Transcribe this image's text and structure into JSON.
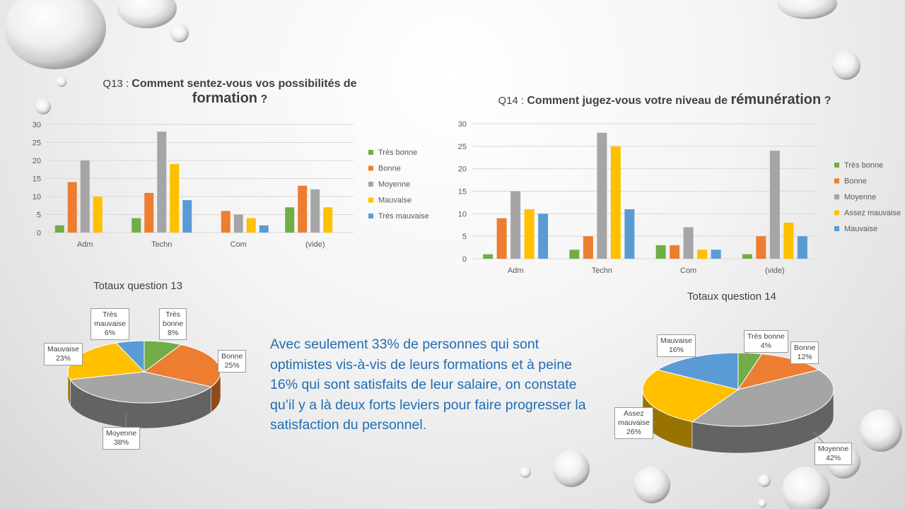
{
  "chart_data": [
    {
      "type": "bar",
      "title": "Q13 : Comment sentez-vous vos possibilités de formation ?",
      "categories": [
        "Adm",
        "Techn",
        "Com",
        "(vide)"
      ],
      "ylim": [
        0,
        30
      ],
      "yticks": [
        0,
        5,
        10,
        15,
        20,
        25,
        30
      ],
      "grid": true,
      "legend_position": "right",
      "series": [
        {
          "name": "Très bonne",
          "color": "#70ad47",
          "values": [
            2,
            4,
            0,
            7
          ]
        },
        {
          "name": "Bonne",
          "color": "#ed7d31",
          "values": [
            14,
            11,
            6,
            13
          ]
        },
        {
          "name": "Moyenne",
          "color": "#a5a5a5",
          "values": [
            20,
            28,
            5,
            12
          ]
        },
        {
          "name": "Mauvaise",
          "color": "#ffc000",
          "values": [
            10,
            19,
            4,
            7
          ]
        },
        {
          "name": "Très mauvaise",
          "color": "#5b9bd5",
          "values": [
            0,
            9,
            2,
            0
          ]
        }
      ]
    },
    {
      "type": "bar",
      "title": "Q14 : Comment jugez-vous votre niveau de rémunération ?",
      "categories": [
        "Adm",
        "Techn",
        "Com",
        "(vide)"
      ],
      "ylim": [
        0,
        30
      ],
      "yticks": [
        0,
        5,
        10,
        15,
        20,
        25,
        30
      ],
      "grid": true,
      "legend_position": "right",
      "series": [
        {
          "name": "Très bonne",
          "color": "#70ad47",
          "values": [
            1,
            2,
            3,
            1
          ]
        },
        {
          "name": "Bonne",
          "color": "#ed7d31",
          "values": [
            9,
            5,
            3,
            5
          ]
        },
        {
          "name": "Moyenne",
          "color": "#a5a5a5",
          "values": [
            15,
            28,
            7,
            24
          ]
        },
        {
          "name": "Assez mauvaise",
          "color": "#ffc000",
          "values": [
            11,
            25,
            2,
            8
          ]
        },
        {
          "name": "Mauvaise",
          "color": "#5b9bd5",
          "values": [
            10,
            11,
            2,
            5
          ]
        }
      ]
    },
    {
      "type": "pie",
      "title": "Totaux question 13",
      "slices": [
        {
          "label": "Très bonne",
          "label_lines": [
            "Très",
            "bonne",
            "8%"
          ],
          "value": 8,
          "color": "#70ad47"
        },
        {
          "label": "Bonne",
          "label_lines": [
            "Bonne",
            "25%"
          ],
          "value": 25,
          "color": "#ed7d31"
        },
        {
          "label": "Moyenne",
          "label_lines": [
            "Moyenne",
            "38%"
          ],
          "value": 38,
          "color": "#a5a5a5"
        },
        {
          "label": "Mauvaise",
          "label_lines": [
            "Mauvaise",
            "23%"
          ],
          "value": 23,
          "color": "#ffc000"
        },
        {
          "label": "Très mauvaise",
          "label_lines": [
            "Très",
            "mauvaise",
            "6%"
          ],
          "value": 6,
          "color": "#5b9bd5"
        }
      ]
    },
    {
      "type": "pie",
      "title": "Totaux question 14",
      "slices": [
        {
          "label": "Très bonne",
          "label_lines": [
            "Très bonne",
            "4%"
          ],
          "value": 4,
          "color": "#70ad47"
        },
        {
          "label": "Bonne",
          "label_lines": [
            "Bonne",
            "12%"
          ],
          "value": 12,
          "color": "#ed7d31"
        },
        {
          "label": "Moyenne",
          "label_lines": [
            "Moyenne",
            "42%"
          ],
          "value": 42,
          "color": "#a5a5a5"
        },
        {
          "label": "Assez mauvaise",
          "label_lines": [
            "Assez",
            "mauvaise",
            "26%"
          ],
          "value": 26,
          "color": "#ffc000"
        },
        {
          "label": "Mauvaise",
          "label_lines": [
            "Mauvaise",
            "16%"
          ],
          "value": 16,
          "color": "#5b9bd5"
        }
      ]
    }
  ],
  "titles": {
    "q13_prefix": "Q13 : ",
    "q13_main": "Comment sentez-vous vos possibilités de",
    "q13_big": "formation",
    "q13_end": " ?",
    "q14_prefix": "Q14 : ",
    "q14_main": "Comment jugez-vous votre niveau de ",
    "q14_big": "rémunération",
    "q14_end": " ?",
    "pie13": "Totaux question 13",
    "pie14": "Totaux question 14"
  },
  "body_text": "Avec seulement 33% de personnes qui sont optimistes vis-à-vis de leurs formations et à peine 16% qui sont satisfaits de leur salaire, on constate qu’il y a là deux forts leviers pour faire progresser la satisfaction du personnel."
}
